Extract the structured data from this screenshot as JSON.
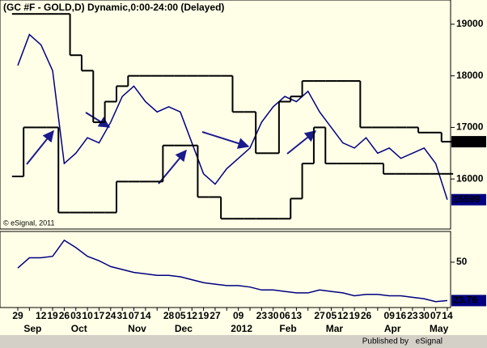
{
  "chart_data": {
    "type": "line",
    "title": "(GC #F - GOLD,D) Dynamic,0:00-24:00 (Delayed)",
    "watermark": "© eSignal, 2011",
    "footer": {
      "prefix": "Published by",
      "brand": "eSignal"
    },
    "categories": [
      "29",
      null,
      "12",
      "19",
      "26",
      "03",
      "10",
      "17",
      "24",
      "31",
      "07",
      "14",
      null,
      "28",
      "05",
      "12",
      "19",
      "27",
      null,
      "09",
      null,
      "23",
      "30",
      "06",
      "13",
      null,
      "27",
      "05",
      "12",
      "19",
      "26",
      null,
      "09",
      "16",
      "23",
      "30",
      "07",
      "14"
    ],
    "months": [
      null,
      "Sep",
      null,
      null,
      null,
      "Oct",
      null,
      null,
      null,
      null,
      "Nov",
      null,
      null,
      null,
      "Dec",
      null,
      null,
      null,
      null,
      "2012",
      null,
      null,
      null,
      "Feb",
      null,
      null,
      null,
      "Mar",
      null,
      null,
      null,
      null,
      "Apr",
      null,
      null,
      null,
      "May",
      null
    ],
    "ylim": [
      15030,
      19470
    ],
    "yticks": [
      16000,
      17000,
      18000,
      19000
    ],
    "series": [
      {
        "name": "Price",
        "color": "#000080",
        "values": [
          18200,
          18800,
          18600,
          18100,
          16300,
          16500,
          16800,
          16700,
          17100,
          17600,
          17800,
          17500,
          17300,
          17400,
          17300,
          16700,
          16100,
          15900,
          16200,
          16400,
          16600,
          17100,
          17400,
          17600,
          17500,
          17700,
          17300,
          17000,
          16700,
          16600,
          16800,
          16500,
          16600,
          16400,
          16500,
          16600,
          16300,
          15599
        ]
      },
      {
        "name": "Upper",
        "color": "#000000",
        "values": [
          19200,
          19200,
          19200,
          19200,
          19200,
          18400,
          18100,
          17100,
          17500,
          17800,
          18000,
          18000,
          18000,
          18000,
          18000,
          18000,
          18000,
          18000,
          18000,
          17300,
          17300,
          16500,
          16500,
          17500,
          17600,
          17900,
          17900,
          17900,
          17900,
          17900,
          17000,
          17000,
          17000,
          17000,
          17000,
          16900,
          16900,
          16723
        ]
      },
      {
        "name": "Lower",
        "color": "#000000",
        "values": [
          16050,
          17000,
          17000,
          17000,
          15350,
          15350,
          15350,
          15350,
          15350,
          15950,
          15950,
          15950,
          15950,
          16650,
          16650,
          16650,
          15650,
          15650,
          15230,
          15230,
          15230,
          15230,
          15230,
          15230,
          15620,
          16300,
          17000,
          16300,
          16300,
          16300,
          16300,
          16300,
          16100,
          16100,
          16100,
          16100,
          16100,
          16100
        ]
      }
    ],
    "indicator": {
      "color": "#000080",
      "ylim": [
        19,
        71
      ],
      "yticks": [
        50
      ],
      "values": [
        46,
        53,
        53,
        54,
        65,
        60,
        54,
        51,
        47,
        45,
        43,
        42,
        41,
        41,
        40,
        38,
        36,
        35,
        34,
        34,
        33,
        31,
        31,
        30,
        29,
        29,
        31,
        30,
        29,
        27,
        28,
        28,
        27,
        27,
        26,
        25,
        23,
        23.76
      ]
    }
  }
}
